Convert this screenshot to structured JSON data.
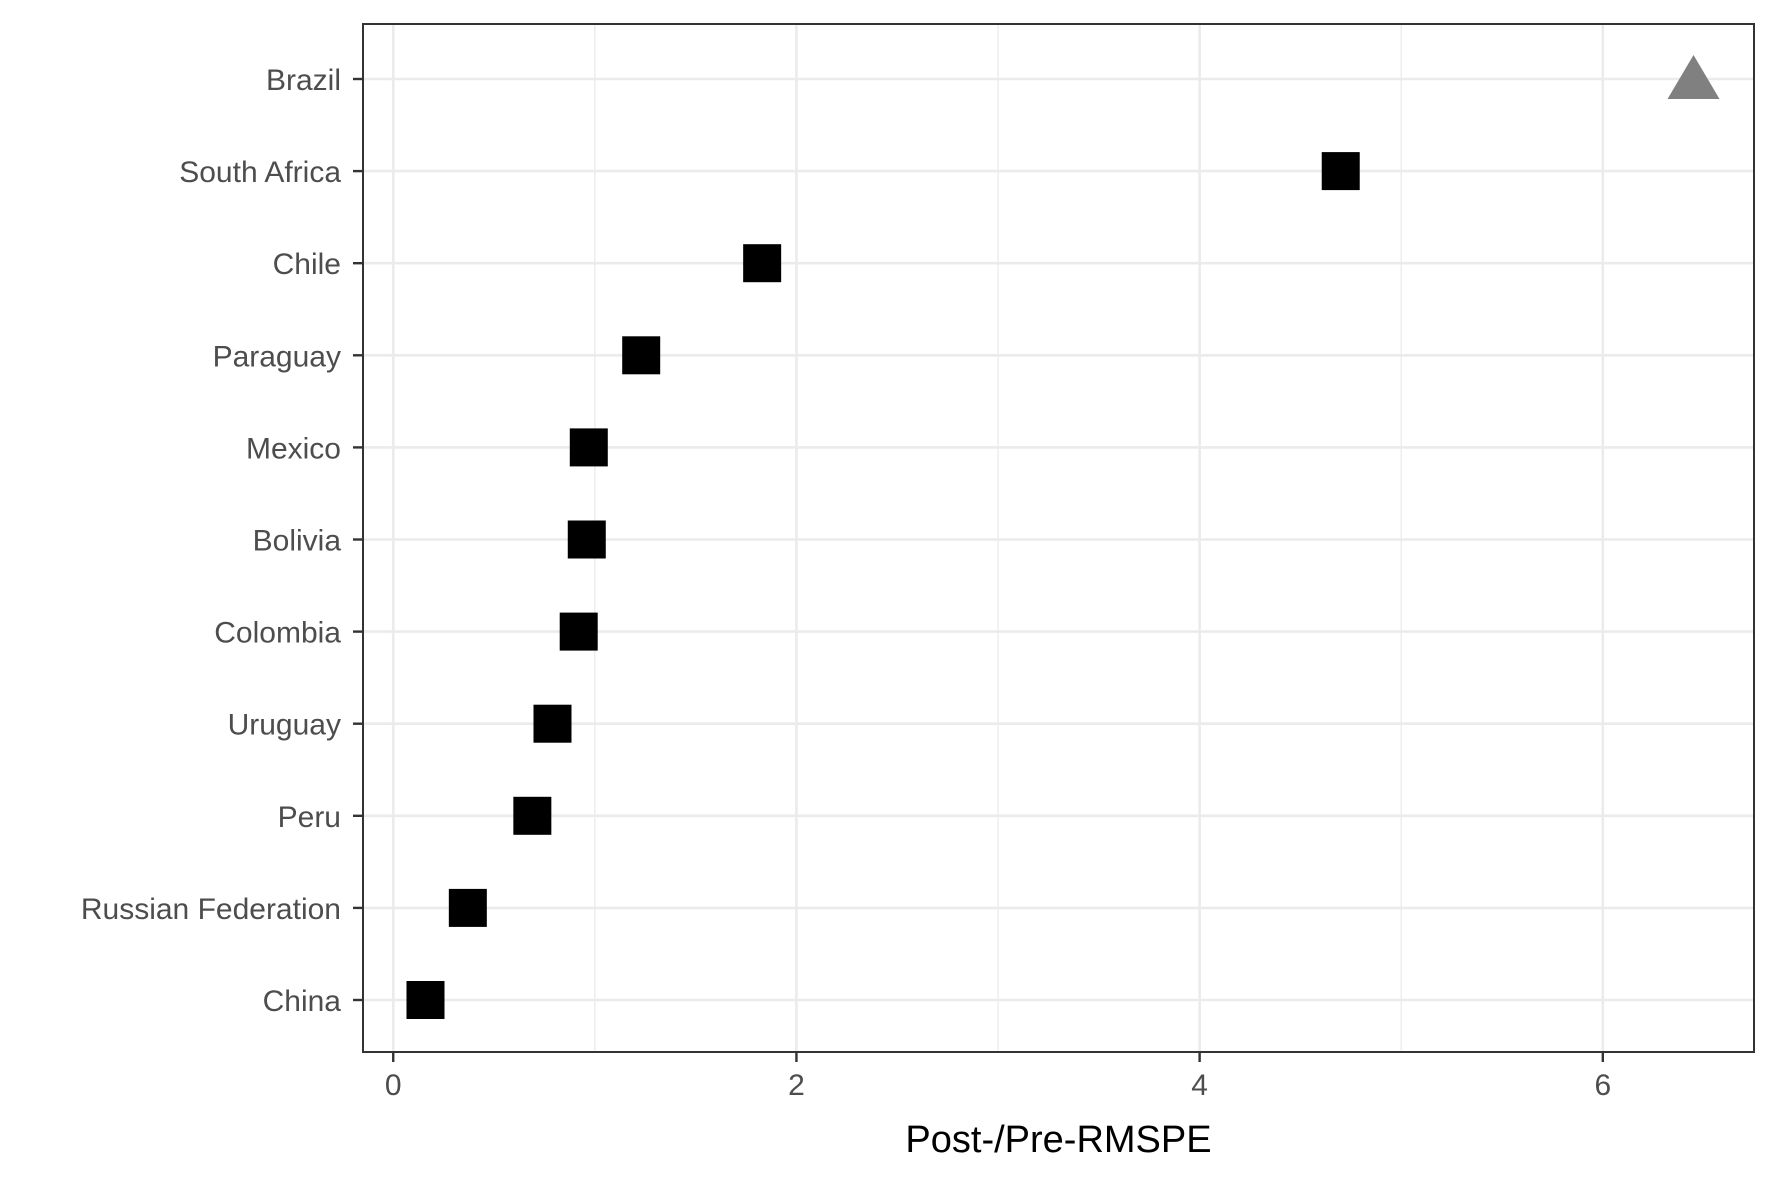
{
  "chart_data": {
    "type": "scatter",
    "xlabel": "Post-/Pre-RMSPE",
    "ylabel": "",
    "xlim": [
      -0.15,
      6.75
    ],
    "x_ticks": [
      0,
      2,
      4,
      6
    ],
    "x_tick_labels": [
      "0",
      "2",
      "4",
      "6"
    ],
    "grid": true,
    "legend": "none",
    "categories": [
      "Brazil",
      "South Africa",
      "Chile",
      "Paraguay",
      "Mexico",
      "Bolivia",
      "Colombia",
      "Uruguay",
      "Peru",
      "Russian Federation",
      "China"
    ],
    "points": [
      {
        "country": "Brazil",
        "value": 6.45,
        "shape": "triangle",
        "color": "#808080"
      },
      {
        "country": "South Africa",
        "value": 4.7,
        "shape": "square",
        "color": "#000000"
      },
      {
        "country": "Chile",
        "value": 1.83,
        "shape": "square",
        "color": "#000000"
      },
      {
        "country": "Paraguay",
        "value": 1.23,
        "shape": "square",
        "color": "#000000"
      },
      {
        "country": "Mexico",
        "value": 0.97,
        "shape": "square",
        "color": "#000000"
      },
      {
        "country": "Bolivia",
        "value": 0.96,
        "shape": "square",
        "color": "#000000"
      },
      {
        "country": "Colombia",
        "value": 0.92,
        "shape": "square",
        "color": "#000000"
      },
      {
        "country": "Uruguay",
        "value": 0.79,
        "shape": "square",
        "color": "#000000"
      },
      {
        "country": "Peru",
        "value": 0.69,
        "shape": "square",
        "color": "#000000"
      },
      {
        "country": "Russian Federation",
        "value": 0.37,
        "shape": "square",
        "color": "#000000"
      },
      {
        "country": "China",
        "value": 0.16,
        "shape": "square",
        "color": "#000000"
      }
    ]
  }
}
